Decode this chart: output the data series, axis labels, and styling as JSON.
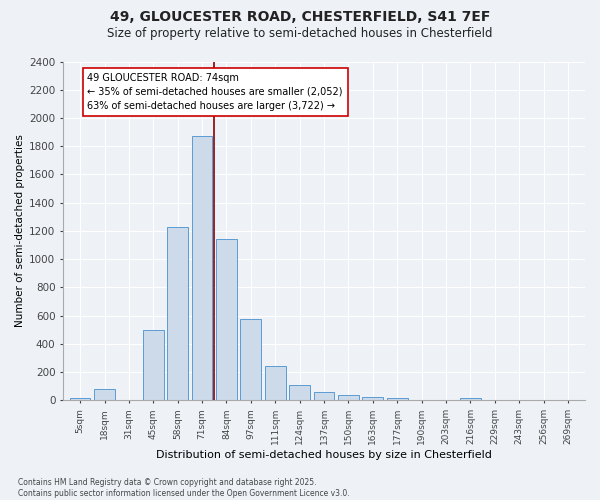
{
  "title_line1": "49, GLOUCESTER ROAD, CHESTERFIELD, S41 7EF",
  "title_line2": "Size of property relative to semi-detached houses in Chesterfield",
  "xlabel": "Distribution of semi-detached houses by size in Chesterfield",
  "ylabel": "Number of semi-detached properties",
  "bar_labels": [
    "5sqm",
    "18sqm",
    "31sqm",
    "45sqm",
    "58sqm",
    "71sqm",
    "84sqm",
    "97sqm",
    "111sqm",
    "124sqm",
    "137sqm",
    "150sqm",
    "163sqm",
    "177sqm",
    "190sqm",
    "203sqm",
    "216sqm",
    "229sqm",
    "243sqm",
    "256sqm",
    "269sqm"
  ],
  "bar_values": [
    15,
    80,
    0,
    500,
    1230,
    1870,
    1140,
    580,
    245,
    110,
    60,
    40,
    25,
    15,
    0,
    0,
    15,
    0,
    0,
    0,
    0
  ],
  "bar_color": "#ccdaea",
  "bar_edge_color": "#5b9bd5",
  "vline_index": 5,
  "vline_color": "#8b0000",
  "annotation_text": "49 GLOUCESTER ROAD: 74sqm\n← 35% of semi-detached houses are smaller (2,052)\n63% of semi-detached houses are larger (3,722) →",
  "annotation_box_color": "#ffffff",
  "annotation_box_edge": "#cc0000",
  "ylim": [
    0,
    2400
  ],
  "yticks": [
    0,
    200,
    400,
    600,
    800,
    1000,
    1200,
    1400,
    1600,
    1800,
    2000,
    2200,
    2400
  ],
  "footer_text": "Contains HM Land Registry data © Crown copyright and database right 2025.\nContains public sector information licensed under the Open Government Licence v3.0.",
  "bg_color": "#eef2f7",
  "plot_bg_color": "#eef2f7",
  "grid_color": "#ffffff"
}
